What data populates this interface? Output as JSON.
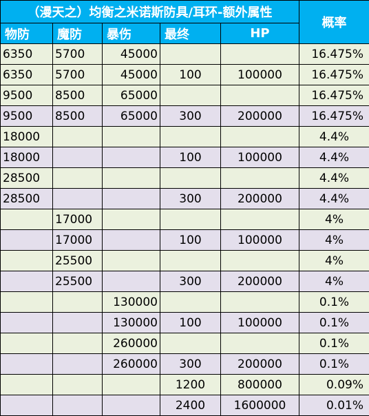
{
  "table": {
    "title": "（漫天之）均衡之米诺斯防具/耳环-额外属性",
    "prob_header": "概率",
    "headers": [
      "物防",
      "魔防",
      "暴伤",
      "最终",
      "HP"
    ],
    "rows": [
      [
        "6350",
        "5700",
        "45000",
        "",
        "",
        "16.475%"
      ],
      [
        "6350",
        "5700",
        "45000",
        "100",
        "100000",
        "16.475%"
      ],
      [
        "9500",
        "8500",
        "65000",
        "",
        "",
        "16.475%"
      ],
      [
        "9500",
        "8500",
        "65000",
        "300",
        "200000",
        "16.475%"
      ],
      [
        "18000",
        "",
        "",
        "",
        "",
        "4.4%"
      ],
      [
        "18000",
        "",
        "",
        "100",
        "100000",
        "4.4%"
      ],
      [
        "28500",
        "",
        "",
        "",
        "",
        "4.4%"
      ],
      [
        "28500",
        "",
        "",
        "300",
        "200000",
        "4.4%"
      ],
      [
        "",
        "17000",
        "",
        "",
        "",
        "4%"
      ],
      [
        "",
        "17000",
        "",
        "100",
        "100000",
        "4%"
      ],
      [
        "",
        "25500",
        "",
        "",
        "",
        "4%"
      ],
      [
        "",
        "25500",
        "",
        "300",
        "200000",
        "4%"
      ],
      [
        "",
        "",
        "130000",
        "",
        "",
        "0.1%"
      ],
      [
        "",
        "",
        "130000",
        "100",
        "100000",
        "0.1%"
      ],
      [
        "",
        "",
        "260000",
        "",
        "",
        "0.1%"
      ],
      [
        "",
        "",
        "260000",
        "300",
        "200000",
        "0.1%"
      ],
      [
        "",
        "",
        "",
        "1200",
        "800000",
        "0.09%"
      ],
      [
        "",
        "",
        "",
        "2400",
        "1600000",
        "0.01%"
      ]
    ]
  },
  "colors": {
    "header_bg": "#00b0f0",
    "header_text": "#ffffff",
    "row_green": "#ebf1de",
    "row_purple": "#e4dfec"
  }
}
